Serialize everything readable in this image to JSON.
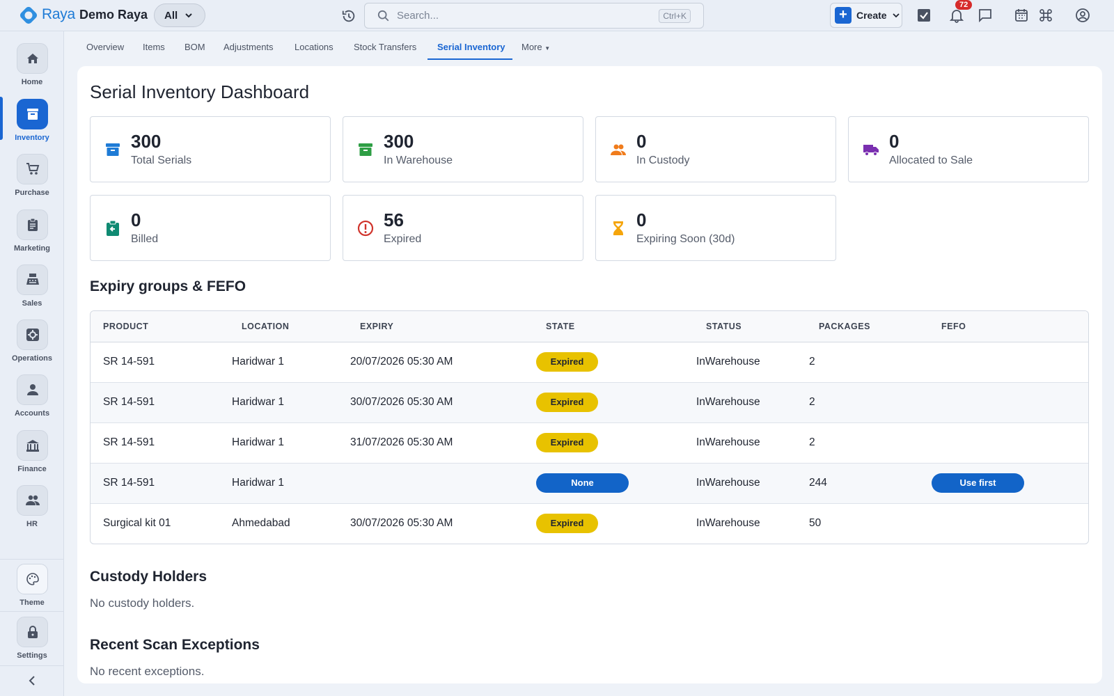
{
  "topbar": {
    "brand": "Raya",
    "org": "Demo Raya",
    "scope": "All",
    "search_placeholder": "Search...",
    "search_shortcut": "Ctrl+K",
    "create_label": "Create",
    "notification_count": "72"
  },
  "sidebar": {
    "items": [
      {
        "label": "Home",
        "icon": "home-icon"
      },
      {
        "label": "Inventory",
        "icon": "inventory-icon",
        "active": true
      },
      {
        "label": "Purchase",
        "icon": "cart-icon"
      },
      {
        "label": "Marketing",
        "icon": "clipboard-icon"
      },
      {
        "label": "Sales",
        "icon": "register-icon"
      },
      {
        "label": "Operations",
        "icon": "operations-icon"
      },
      {
        "label": "Accounts",
        "icon": "person-icon"
      },
      {
        "label": "Finance",
        "icon": "bank-icon"
      },
      {
        "label": "HR",
        "icon": "people-icon"
      }
    ],
    "theme_label": "Theme",
    "settings_label": "Settings"
  },
  "tabs": [
    "Overview",
    "Items",
    "BOM",
    "Adjustments",
    "Locations",
    "Stock Transfers",
    "Serial Inventory",
    "More"
  ],
  "active_tab": "Serial Inventory",
  "page": {
    "title": "Serial Inventory Dashboard",
    "stats": [
      {
        "value": "300",
        "label": "Total Serials",
        "icon": "archive-icon",
        "color": "#1e7bd6"
      },
      {
        "value": "300",
        "label": "In Warehouse",
        "icon": "archive-icon",
        "color": "#2e9e44"
      },
      {
        "value": "0",
        "label": "In Custody",
        "icon": "people-icon",
        "color": "#f07c1c"
      },
      {
        "value": "0",
        "label": "Allocated to Sale",
        "icon": "truck-icon",
        "color": "#7a2fb0"
      },
      {
        "value": "0",
        "label": "Billed",
        "icon": "billed-icon",
        "color": "#0f8a72"
      },
      {
        "value": "56",
        "label": "Expired",
        "icon": "alert-icon",
        "color": "#d0342c"
      },
      {
        "value": "0",
        "label": "Expiring Soon (30d)",
        "icon": "hourglass-icon",
        "color": "#f5a50b"
      }
    ],
    "expiry_heading": "Expiry groups & FEFO",
    "table": {
      "headers": [
        "PRODUCT",
        "LOCATION",
        "EXPIRY",
        "STATE",
        "STATUS",
        "PACKAGES",
        "FEFO"
      ],
      "rows": [
        {
          "product": "SR 14-591",
          "location": "Haridwar 1",
          "expiry": "20/07/2026 05:30 AM",
          "state": "Expired",
          "status": "InWarehouse",
          "packages": "2",
          "fefo": ""
        },
        {
          "product": "SR 14-591",
          "location": "Haridwar 1",
          "expiry": "30/07/2026 05:30 AM",
          "state": "Expired",
          "status": "InWarehouse",
          "packages": "2",
          "fefo": ""
        },
        {
          "product": "SR 14-591",
          "location": "Haridwar 1",
          "expiry": "31/07/2026 05:30 AM",
          "state": "Expired",
          "status": "InWarehouse",
          "packages": "2",
          "fefo": ""
        },
        {
          "product": "SR 14-591",
          "location": "Haridwar 1",
          "expiry": "",
          "state": "None",
          "status": "InWarehouse",
          "packages": "244",
          "fefo": "Use first"
        },
        {
          "product": "Surgical kit 01",
          "location": "Ahmedabad",
          "expiry": "30/07/2026 05:30 AM",
          "state": "Expired",
          "status": "InWarehouse",
          "packages": "50",
          "fefo": ""
        }
      ]
    },
    "custody_heading": "Custody Holders",
    "custody_empty": "No custody holders.",
    "exceptions_heading": "Recent Scan Exceptions",
    "exceptions_empty": "No recent exceptions."
  }
}
